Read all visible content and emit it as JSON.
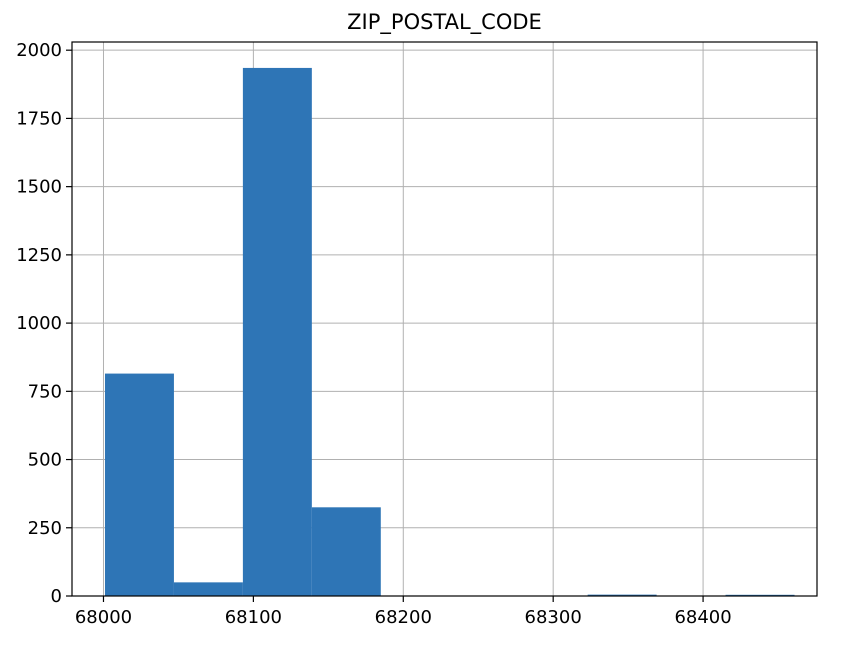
{
  "chart_data": {
    "type": "bar",
    "subtype": "histogram",
    "title": "ZIP_POSTAL_CODE",
    "xlabel": "",
    "ylabel": "",
    "xlim": [
      67979,
      68476
    ],
    "ylim": [
      0,
      2030
    ],
    "xticks": [
      68000,
      68100,
      68200,
      68300,
      68400
    ],
    "yticks": [
      0,
      250,
      500,
      750,
      1000,
      1250,
      1500,
      1750,
      2000
    ],
    "bins": [
      {
        "x0": 68001,
        "x1": 68047,
        "count": 815
      },
      {
        "x0": 68047,
        "x1": 68093,
        "count": 50
      },
      {
        "x0": 68093,
        "x1": 68139,
        "count": 1935
      },
      {
        "x0": 68139,
        "x1": 68185,
        "count": 325
      },
      {
        "x0": 68185,
        "x1": 68231,
        "count": 0
      },
      {
        "x0": 68231,
        "x1": 68277,
        "count": 0
      },
      {
        "x0": 68277,
        "x1": 68323,
        "count": 0
      },
      {
        "x0": 68323,
        "x1": 68369,
        "count": 5
      },
      {
        "x0": 68369,
        "x1": 68415,
        "count": 0
      },
      {
        "x0": 68415,
        "x1": 68461,
        "count": 2
      }
    ],
    "grid": true,
    "bar_color": "#2e75b6"
  }
}
